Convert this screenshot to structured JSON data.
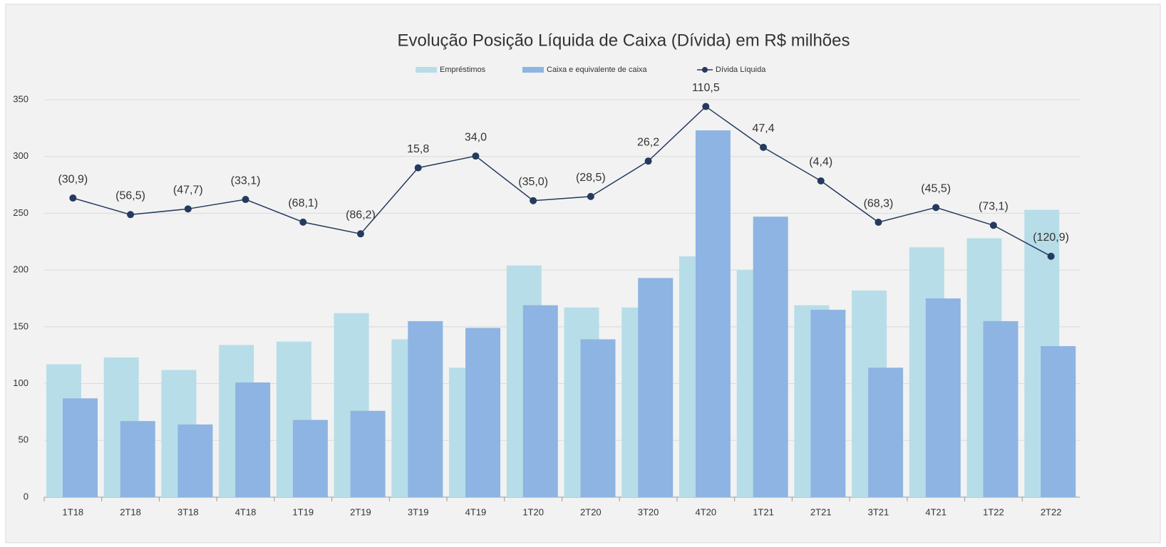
{
  "chart_data": {
    "type": "bar_line",
    "title": "Evolução Posição Líquida de Caixa (Dívida) em R$ milhões",
    "categories": [
      "1T18",
      "2T18",
      "3T18",
      "4T18",
      "1T19",
      "2T19",
      "3T19",
      "4T19",
      "1T20",
      "2T20",
      "3T20",
      "4T20",
      "1T21",
      "2T21",
      "3T21",
      "4T21",
      "1T22",
      "2T22"
    ],
    "ylim": [
      0,
      350
    ],
    "yticks": [
      0,
      50,
      100,
      150,
      200,
      250,
      300,
      350
    ],
    "y2lim": [
      -493,
      121
    ],
    "grid": true,
    "legend": "top",
    "series": [
      {
        "name": "Empréstimos",
        "type": "bar",
        "color": "#b7dde8",
        "values": [
          117,
          123,
          112,
          134,
          137,
          162,
          139,
          114,
          204,
          167,
          167,
          212,
          200,
          169,
          182,
          220,
          228,
          253
        ]
      },
      {
        "name": "Caixa e equivalente de caixa",
        "type": "bar",
        "color": "#8db4e2",
        "values": [
          87,
          67,
          64,
          101,
          68,
          76,
          155,
          149,
          169,
          139,
          193,
          323,
          247,
          165,
          114,
          175,
          155,
          133
        ]
      },
      {
        "name": "Dívida Líquida",
        "type": "line",
        "axis": "y2",
        "color": "#243a5e",
        "values": [
          -30.9,
          -56.5,
          -47.7,
          -33.1,
          -68.1,
          -86.2,
          15.8,
          34.0,
          -35.0,
          -28.5,
          26.2,
          110.5,
          47.4,
          -4.4,
          -68.3,
          -45.5,
          -73.1,
          -120.9
        ],
        "value_labels": [
          "(30,9)",
          "(56,5)",
          "(47,7)",
          "(33,1)",
          "(68,1)",
          "(86,2)",
          "15,8",
          "34,0",
          "(35,0)",
          "(28,5)",
          "26,2",
          "110,5",
          "47,4",
          "(4,4)",
          "(68,3)",
          "(45,5)",
          "(73,1)",
          "(120,9)"
        ]
      }
    ]
  }
}
